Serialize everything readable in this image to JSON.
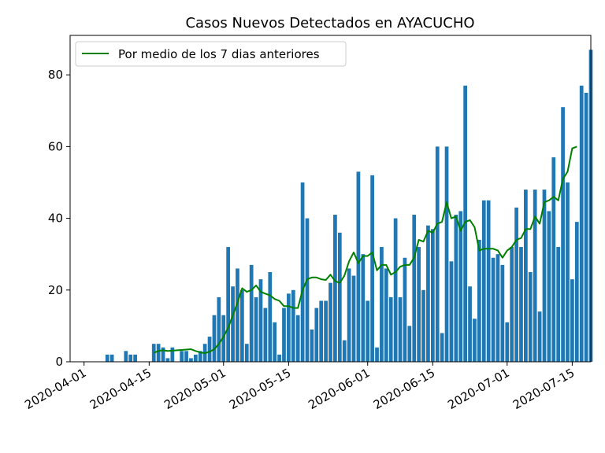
{
  "chart_data": {
    "type": "bar",
    "title": "Casos Nuevos Detectados en AYACUCHO",
    "xlabel": "",
    "ylabel": "",
    "x_start": "2020-04-01",
    "xlim": [
      "2020-03-29",
      "2020-07-19"
    ],
    "ylim": [
      0,
      91
    ],
    "yticks": [
      0,
      20,
      40,
      60,
      80
    ],
    "xticks": [
      "2020-04-01",
      "2020-04-15",
      "2020-05-01",
      "2020-05-15",
      "2020-06-01",
      "2020-06-15",
      "2020-07-01",
      "2020-07-15"
    ],
    "grid": false,
    "legend_position": "top-left",
    "bar_color": "#1f77b4",
    "line_color": "#008000",
    "series": [
      {
        "kind": "bar",
        "values": [
          0,
          0,
          0,
          0,
          0,
          2,
          2,
          0,
          0,
          3,
          2,
          2,
          0,
          0,
          0,
          5,
          5,
          4,
          1,
          4,
          0,
          3,
          3,
          1,
          2,
          3,
          5,
          7,
          13,
          18,
          13,
          32,
          21,
          26,
          20,
          5,
          27,
          18,
          23,
          15,
          25,
          11,
          2,
          15,
          19,
          20,
          13,
          50,
          40,
          9,
          15,
          17,
          17,
          22,
          41,
          36,
          6,
          26,
          24,
          53,
          30,
          17,
          52,
          4,
          32,
          26,
          18,
          40,
          18,
          29,
          10,
          41,
          32,
          20,
          38,
          37,
          60,
          8,
          60,
          28,
          41,
          42,
          77,
          21,
          12,
          34,
          45,
          45,
          29,
          30,
          27,
          11,
          32,
          43,
          32,
          48,
          25,
          48,
          14,
          48,
          42,
          57,
          32,
          71,
          50,
          23,
          39,
          77,
          75,
          87
        ]
      },
      {
        "kind": "line",
        "name": "Por medio de los 7 dias anteriores",
        "start_index": 15,
        "values": [
          2.5,
          3.0,
          3.2,
          3.0,
          3.1,
          3.2,
          3.3,
          3.4,
          3.5,
          3.0,
          2.6,
          2.4,
          2.8,
          3.5,
          5.0,
          7.0,
          9.5,
          13.0,
          16.5,
          20.5,
          19.5,
          20.0,
          21.3,
          19.5,
          19.0,
          18.5,
          17.5,
          17.0,
          15.5,
          15.5,
          15.0,
          15.0,
          20.0,
          23.0,
          23.5,
          23.5,
          23.0,
          22.8,
          24.3,
          22.5,
          22.0,
          24.0,
          28.0,
          30.5,
          27.5,
          29.5,
          29.5,
          30.5,
          25.5,
          27.0,
          27.0,
          24.3,
          25.0,
          26.5,
          27.0,
          27.0,
          29.0,
          34.0,
          33.5,
          36.5,
          36.0,
          38.5,
          39.0,
          44.5,
          40.0,
          40.5,
          36.5,
          39.0,
          39.5,
          37.5,
          31.0,
          31.5,
          31.5,
          31.5,
          31.0,
          29.0,
          31.0,
          32.0,
          34.0,
          34.5,
          37.0,
          37.0,
          40.5,
          38.5,
          44.5,
          45.0,
          46.0,
          45.0,
          51.0,
          53.0,
          59.5,
          60.0
        ]
      }
    ]
  }
}
